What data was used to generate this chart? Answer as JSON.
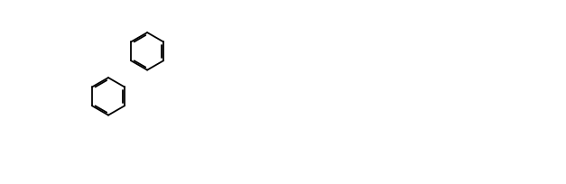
{
  "bg_color": "#ffffff",
  "line_color": "#000000",
  "lw": 1.3,
  "fs": 7.5
}
